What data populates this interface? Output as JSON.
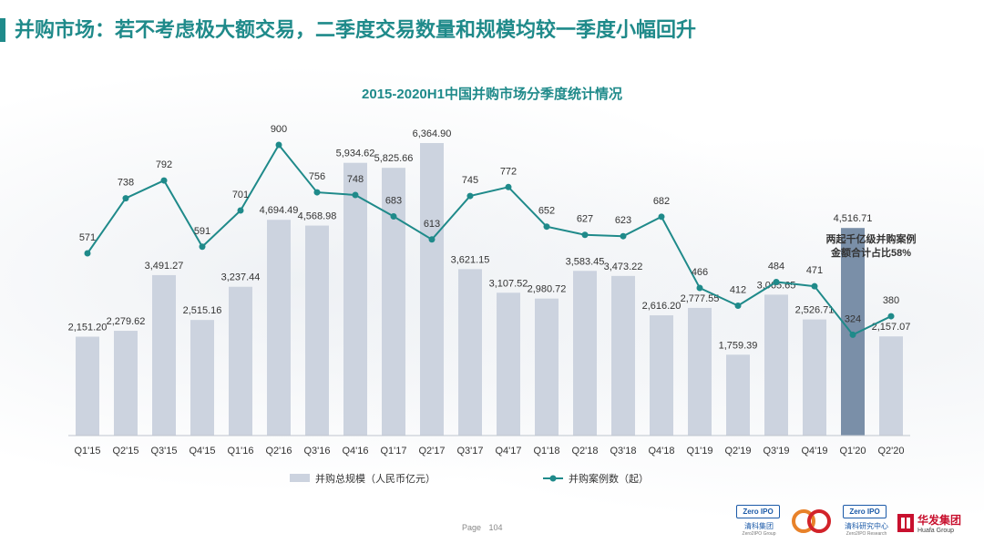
{
  "page": {
    "title": "并购市场：若不考虑极大额交易，二季度交易数量和规模均较一季度小幅回升",
    "page_label": "Page",
    "page_number": "104"
  },
  "logos": {
    "zero2ipo_group_badge": "Zero IPO",
    "zero2ipo_group_cn": "清科集团",
    "zero2ipo_group_en": "Zero2IPO Group",
    "zero2ipo_research_badge": "Zero IPO",
    "zero2ipo_research_cn": "清科研究中心",
    "zero2ipo_research_en": "Zero2IPO Research",
    "huafa_cn": "华发集团",
    "huafa_en": "Huafa Group"
  },
  "chart_data": {
    "type": "bar",
    "title": "2015-2020H1中国并购市场分季度统计情况",
    "categories": [
      "Q1'15",
      "Q2'15",
      "Q3'15",
      "Q4'15",
      "Q1'16",
      "Q2'16",
      "Q3'16",
      "Q4'16",
      "Q1'17",
      "Q2'17",
      "Q3'17",
      "Q4'17",
      "Q1'18",
      "Q2'18",
      "Q3'18",
      "Q4'18",
      "Q1'19",
      "Q2'19",
      "Q3'19",
      "Q4'19",
      "Q1'20",
      "Q2'20"
    ],
    "series": [
      {
        "name": "并购总规模（人民币亿元）",
        "type": "bar",
        "values": [
          2151.2,
          2279.62,
          3491.27,
          2515.16,
          3237.44,
          4694.49,
          4568.98,
          5934.62,
          5825.66,
          6364.9,
          3621.15,
          3107.52,
          2980.72,
          3583.45,
          3473.22,
          2616.2,
          2777.55,
          1759.39,
          3065.65,
          2526.71,
          4516.71,
          2157.07
        ],
        "labels": [
          "2,151.20",
          "2,279.62",
          "3,491.27",
          "2,515.16",
          "3,237.44",
          "4,694.49",
          "4,568.98",
          "5,934.62",
          "5,825.66",
          "6,364.90",
          "3,621.15",
          "3,107.52",
          "2,980.72",
          "3,583.45",
          "3,473.22",
          "2,616.20",
          "2,777.55",
          "1,759.39",
          "3,065.65",
          "2,526.71",
          "4,516.71",
          "2,157.07"
        ],
        "color": "#ccd3df",
        "highlight_index": 20,
        "highlight_color": "#7a8fa8"
      },
      {
        "name": "并购案例数（起）",
        "type": "line",
        "values": [
          571,
          738,
          792,
          591,
          701,
          900,
          756,
          748,
          683,
          613,
          745,
          772,
          652,
          627,
          623,
          682,
          466,
          412,
          484,
          471,
          324,
          380
        ],
        "color": "#1f8a8a"
      }
    ],
    "annotation": [
      "两起千亿级并购案例",
      "金额合计占比58%"
    ],
    "legend_position": "bottom",
    "grid": false
  }
}
